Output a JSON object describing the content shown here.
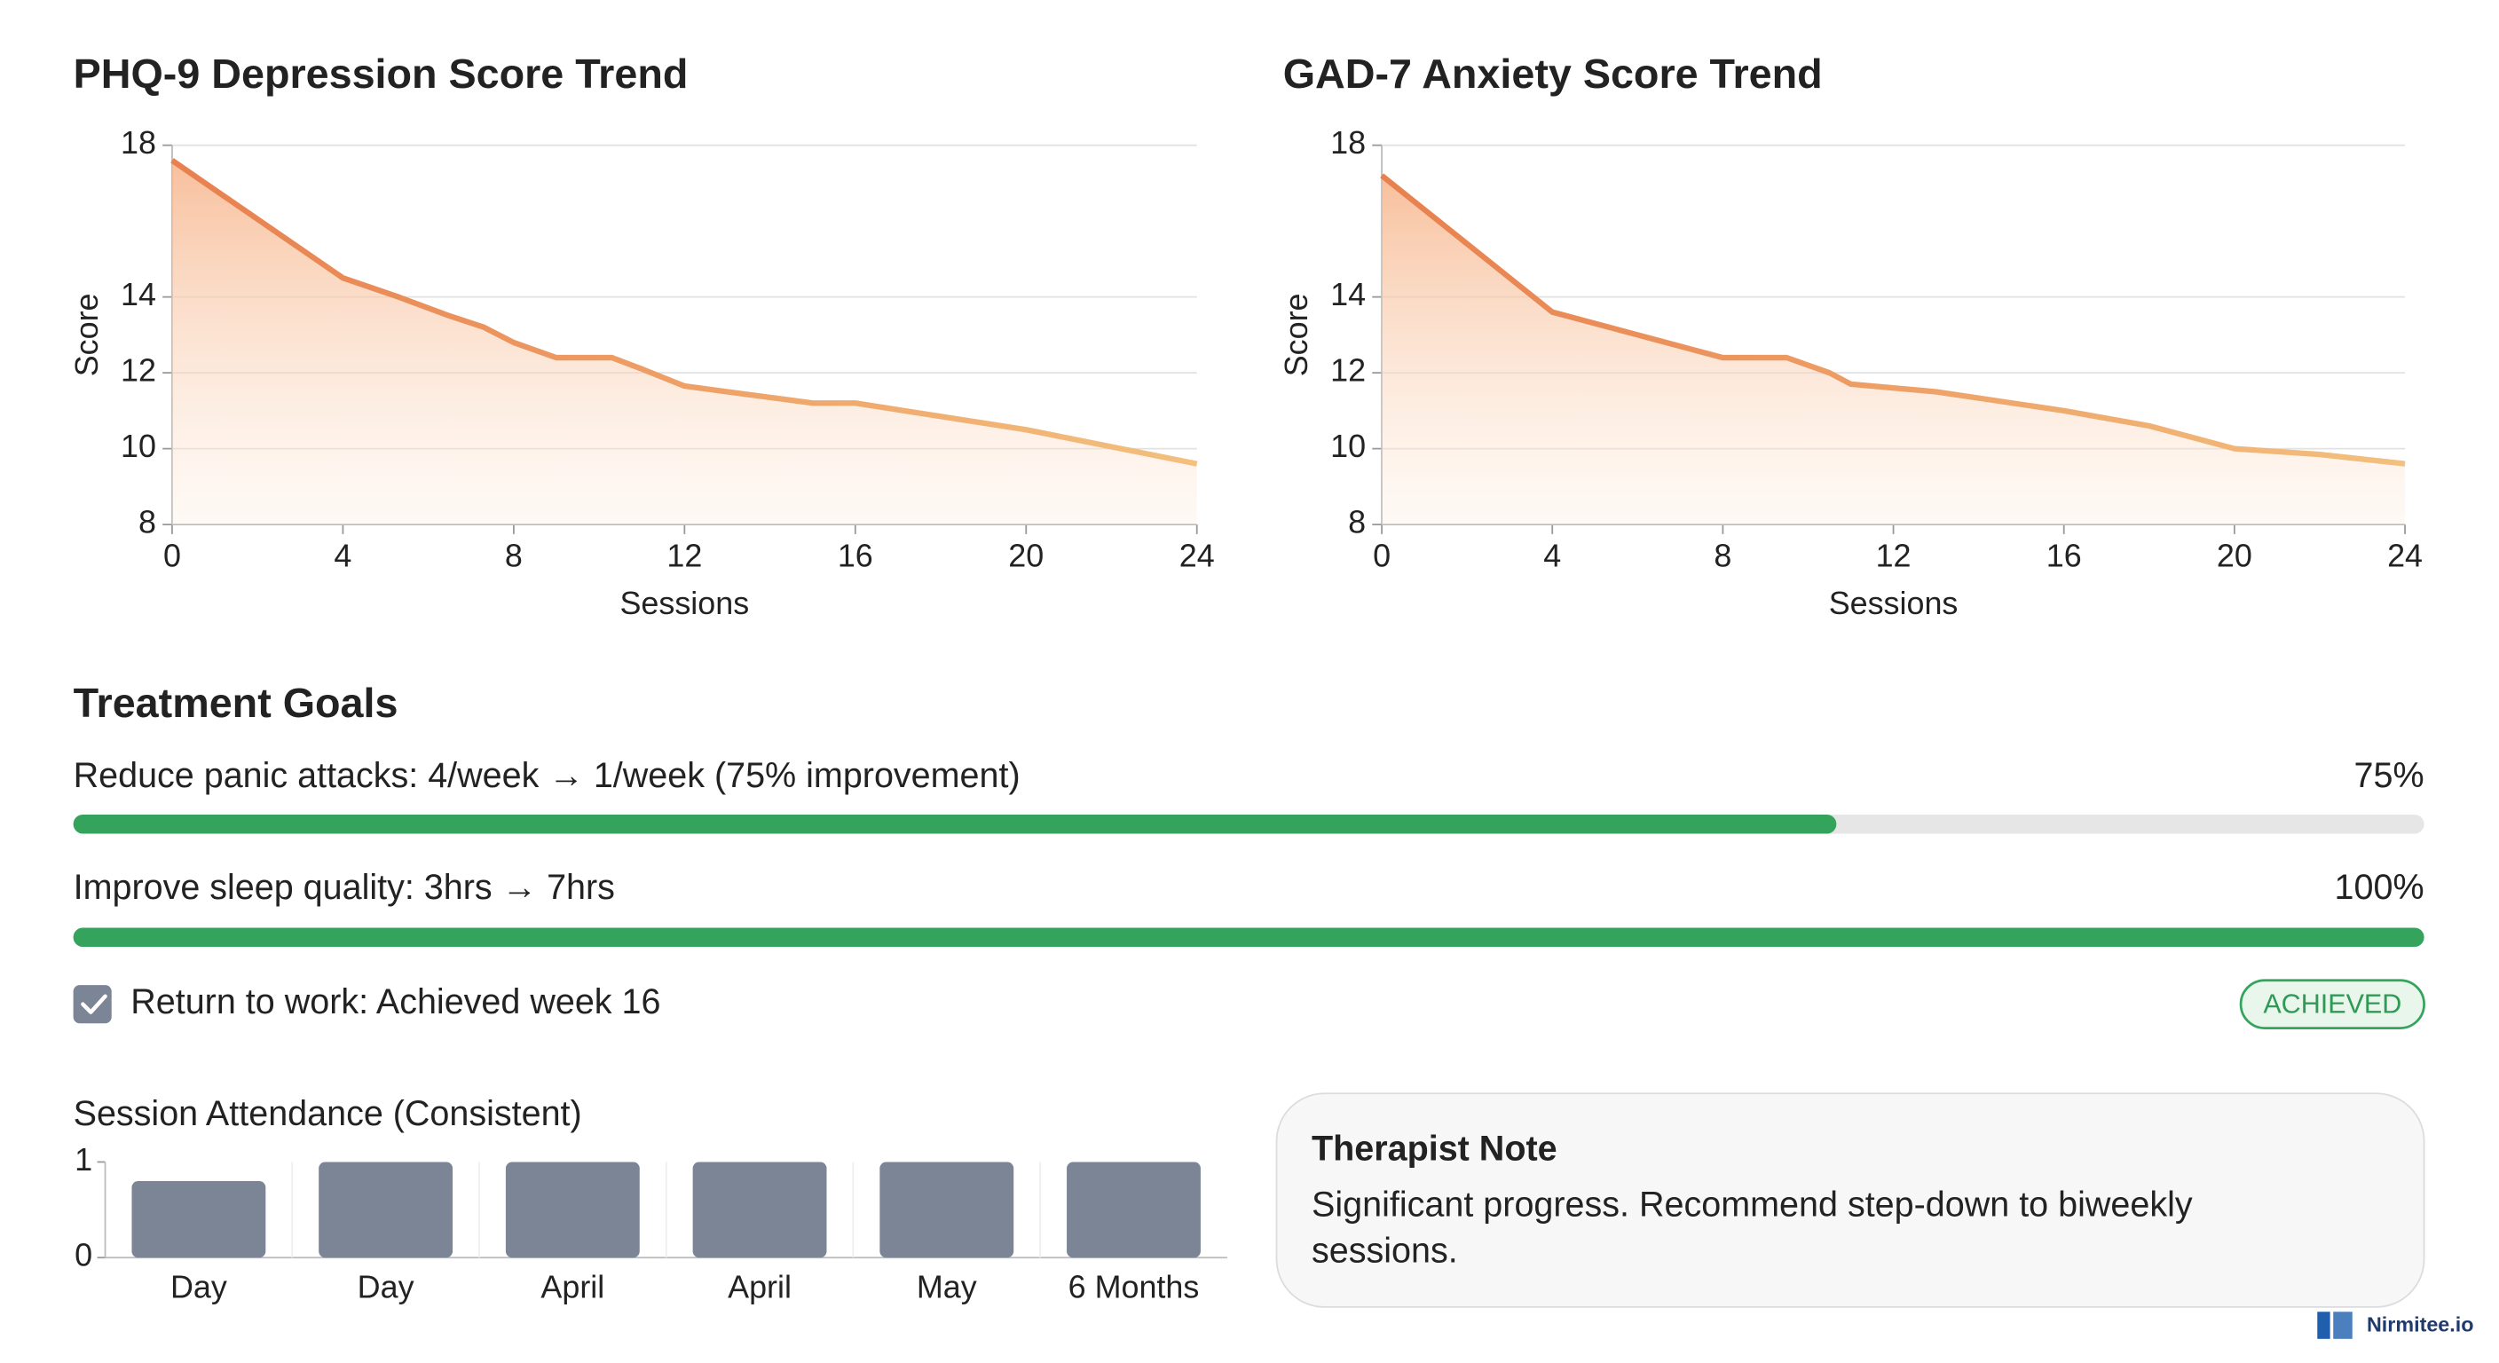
{
  "chart_data": [
    {
      "type": "line",
      "title": "PHQ-9 Depression Score Trend",
      "x_label": "Sessions",
      "y_label": "Score",
      "x": [
        0,
        4,
        5.3,
        6.5,
        7.3,
        8,
        9,
        10.3,
        11,
        12,
        13,
        15,
        16,
        20,
        24
      ],
      "values": [
        17.6,
        14.5,
        14.0,
        13.5,
        13.2,
        12.8,
        12.4,
        12.4,
        12.1,
        11.65,
        11.5,
        11.2,
        11.2,
        10.5,
        9.6
      ],
      "color": "#e8804f",
      "xlim": [
        0,
        24
      ],
      "xticks": [
        0,
        4,
        8,
        12,
        16,
        20,
        24
      ],
      "ylim": [
        8,
        18
      ],
      "yticks": [
        8,
        10,
        12,
        14,
        18
      ],
      "grid": true
    },
    {
      "type": "line",
      "title": "GAD-7 Anxiety Score Trend",
      "x_label": "Sessions",
      "y_label": "Score",
      "x": [
        0,
        4,
        6,
        8,
        9.5,
        10.5,
        11,
        13,
        16,
        18,
        20,
        22,
        24
      ],
      "values": [
        17.2,
        13.6,
        13.0,
        12.4,
        12.4,
        12.0,
        11.7,
        11.5,
        11.0,
        10.6,
        10.0,
        9.85,
        9.6
      ],
      "color": "#e8804f",
      "xlim": [
        0,
        24
      ],
      "xticks": [
        0,
        4,
        8,
        12,
        16,
        20,
        24
      ],
      "ylim": [
        8,
        18
      ],
      "yticks": [
        8,
        10,
        12,
        14,
        18
      ],
      "grid": true
    },
    {
      "type": "bar",
      "title": "Session Attendance (Consistent)",
      "categories": [
        "Day",
        "Day",
        "April",
        "April",
        "May",
        "6 Months"
      ],
      "values": [
        0.8,
        1,
        1,
        1,
        1,
        1
      ],
      "color": "#7c8596",
      "ylim": [
        0,
        1
      ],
      "yticks": [
        0,
        1
      ]
    }
  ],
  "goals": {
    "title": "Treatment Goals",
    "color": "#34a35c",
    "items": [
      {
        "text": "Reduce panic attacks: 4/week → 1/week (75% improvement)",
        "value": 75,
        "value_label": "75%"
      },
      {
        "text": "Improve sleep quality: 3hrs → 7hrs",
        "value": 100,
        "value_label": "100%"
      }
    ],
    "achieved": {
      "text": "Return to work: Achieved week 16",
      "badge": "ACHIEVED"
    }
  },
  "note": {
    "title": "Therapist Note",
    "body": "Significant progress. Recommend step-down to biweekly sessions."
  },
  "brand": "Nirmitee.io"
}
